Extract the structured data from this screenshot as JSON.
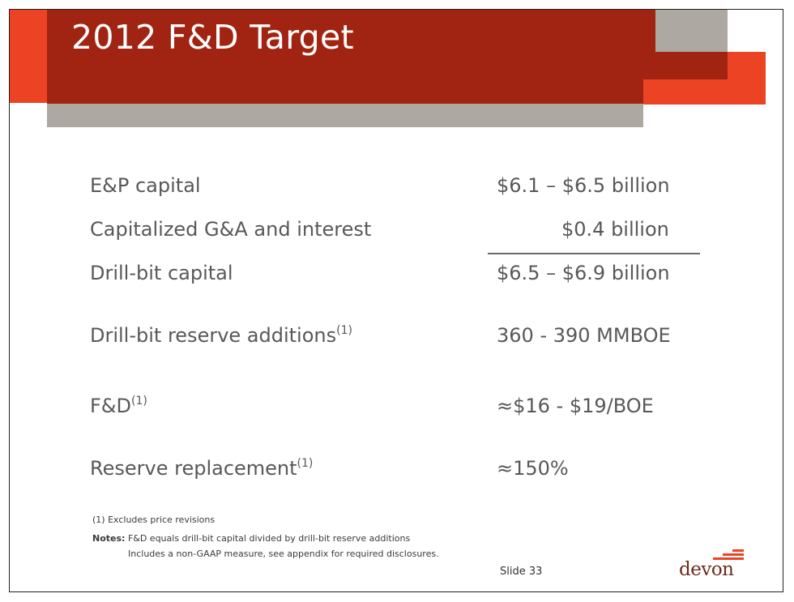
{
  "slide": {
    "title": "2012 F&D Target",
    "rows": [
      {
        "label": "E&P capital",
        "value": "$6.1 – $6.5 billion"
      },
      {
        "label": "Capitalized G&A and interest",
        "value": "$0.4 billion"
      },
      {
        "label": "Drill-bit capital",
        "value": "$6.5 – $6.9 billion"
      },
      {
        "label": "Drill-bit reserve additions",
        "footnote": "(1)",
        "value": "360 - 390 MMBOE"
      },
      {
        "label": "F&D",
        "footnote": "(1)",
        "value": "≈$16 - $19/BOE"
      },
      {
        "label": "Reserve replacement",
        "footnote": "(1)",
        "value": "≈150%"
      }
    ],
    "footnote_1": "(1) Excludes price revisions",
    "notes_label": "Notes:",
    "notes_line_1": "F&D equals drill-bit capital divided by drill-bit reserve additions",
    "notes_line_2": "Includes a non-GAAP measure, see appendix for required disclosures.",
    "slide_number": "Slide 33",
    "logo_text": "devon",
    "colors": {
      "brand_orange": "#ec4324",
      "brand_dark_red": "#a12413",
      "accent_gray": "#ada8a2",
      "body_text": "#58585a"
    }
  }
}
